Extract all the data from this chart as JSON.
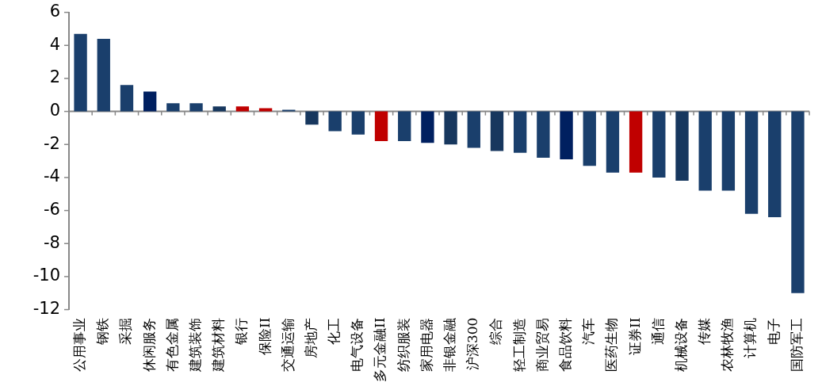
{
  "chart_data": {
    "type": "bar",
    "categories": [
      "公用事业",
      "钢铁",
      "采掘",
      "休闲服务",
      "有色金属",
      "建筑装饰",
      "建筑材料",
      "银行",
      "保险II",
      "交通运输",
      "房地产",
      "化工",
      "电气设备",
      "多元金融II",
      "纺织服装",
      "家用电器",
      "非银金融",
      "沪深300",
      "综合",
      "轻工制造",
      "商业贸易",
      "食品饮料",
      "汽车",
      "医药生物",
      "证券II",
      "通信",
      "机械设备",
      "传媒",
      "农林牧渔",
      "计算机",
      "电子",
      "国防军工"
    ],
    "values": [
      4.7,
      4.4,
      1.6,
      1.2,
      0.5,
      0.5,
      0.3,
      0.3,
      0.2,
      0.1,
      -0.8,
      -1.2,
      -1.4,
      -1.8,
      -1.8,
      -1.9,
      -2.0,
      -2.2,
      -2.4,
      -2.5,
      -2.8,
      -2.9,
      -3.3,
      -3.7,
      -3.7,
      -4.0,
      -4.2,
      -4.8,
      -4.8,
      -6.2,
      -6.4,
      -11.0
    ],
    "colors": [
      "#1a3f6c",
      "#1a3f6c",
      "#1a3f6c",
      "#002060",
      "#1a3f6c",
      "#1a3f6c",
      "#17375e",
      "#c00000",
      "#c00000",
      "#1a3f6c",
      "#17375e",
      "#1a3f6c",
      "#1a3f6c",
      "#c00000",
      "#1a3f6c",
      "#002060",
      "#17375e",
      "#1a3f6c",
      "#17375e",
      "#1a3f6c",
      "#1a3f6c",
      "#002060",
      "#1a3f6c",
      "#1a3f6c",
      "#c00000",
      "#1a3f6c",
      "#17375e",
      "#1a3f6c",
      "#1a3f6c",
      "#1a3f6c",
      "#1a3f6c",
      "#1a3f6c"
    ],
    "ylim": [
      -12,
      6
    ],
    "yticks": [
      -12,
      -10,
      -8,
      -6,
      -4,
      -2,
      0,
      2,
      4,
      6
    ],
    "legend": false
  }
}
